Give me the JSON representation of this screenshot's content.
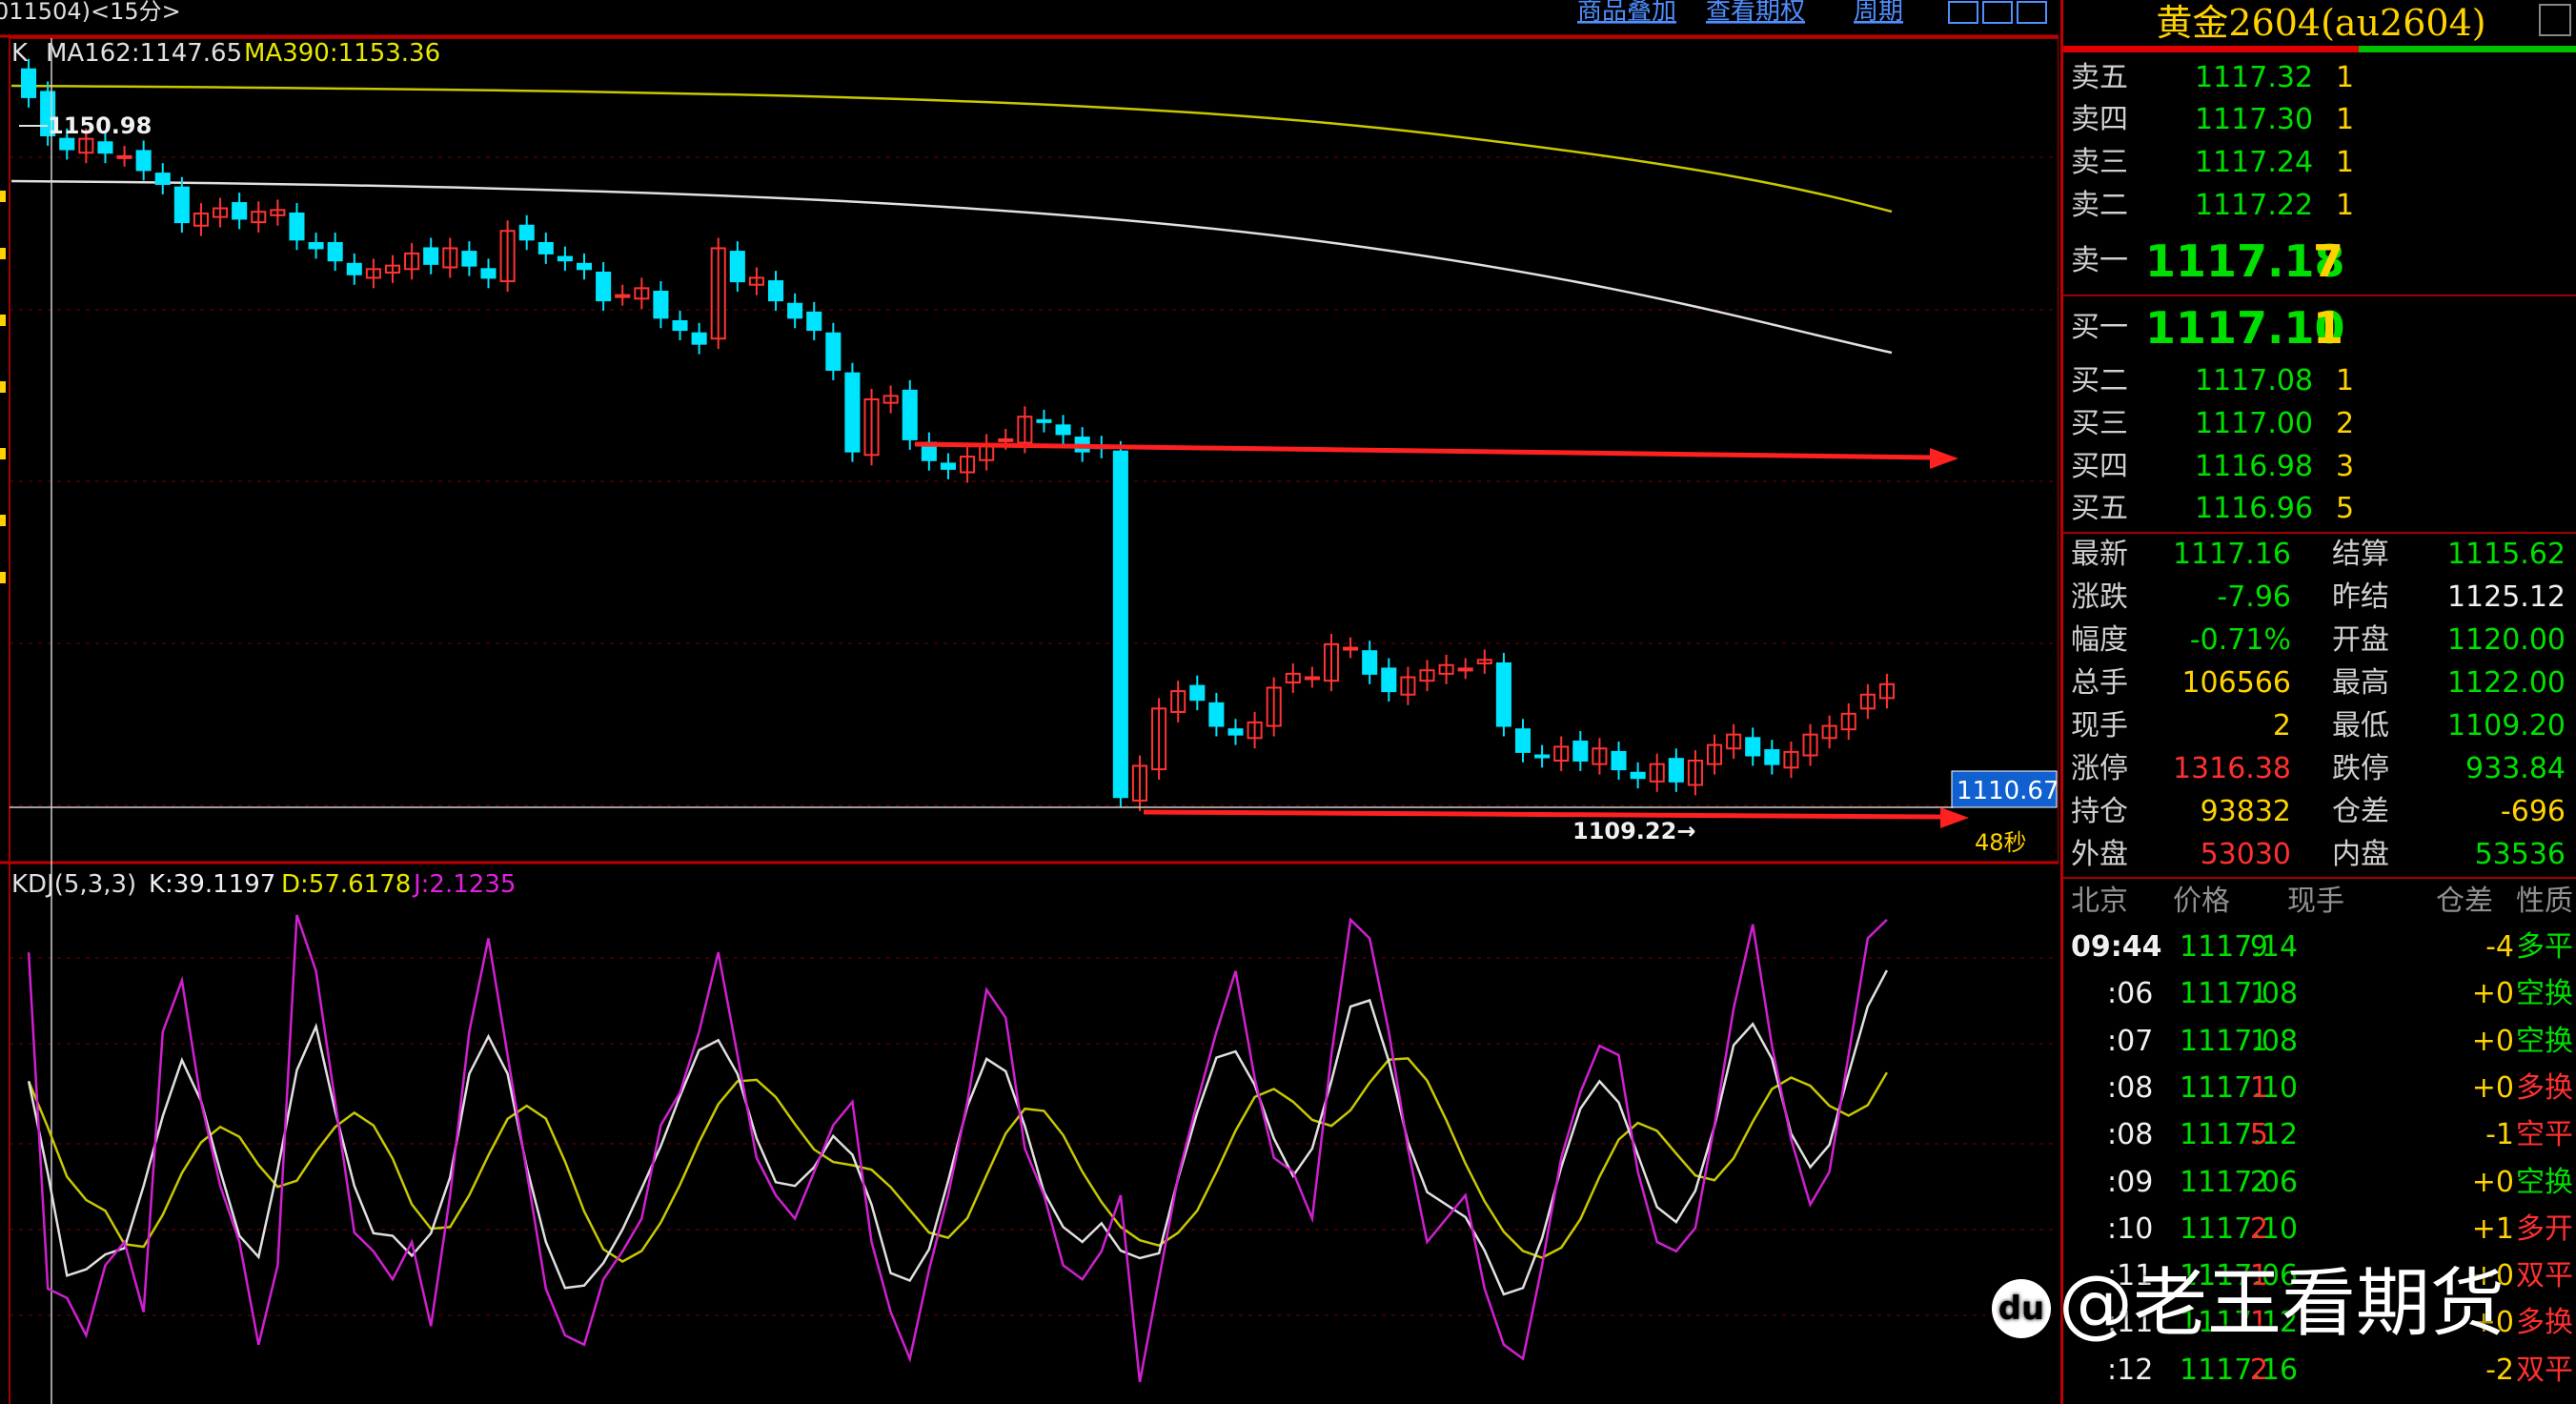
{
  "header": {
    "symbol_tag": "011504)<15分>",
    "links": [
      "商品叠加",
      "查看期权",
      "周期"
    ],
    "nav_icons": [
      "prev-icon",
      "next-icon",
      "window-icon"
    ]
  },
  "main_chart": {
    "indicator_label": "K",
    "ma162_label": "MA162:1147.65",
    "ma390_label": "MA390:1153.36",
    "high_marker": "1150.98",
    "low_marker": "1109.22→",
    "current_price_tag": "1110.67",
    "countdown": "48秒",
    "colors": {
      "up": "#ff3333",
      "down": "#00e5ff",
      "ma162": "#e0e0e0",
      "ma390": "#c8c800",
      "arrow": "#ff2020"
    }
  },
  "kdj": {
    "label": "KDJ(5,3,3)",
    "k": "K:39.1197",
    "d": "D:57.6178",
    "j": "J:2.1235",
    "colors": {
      "k": "#e0e0e0",
      "d": "#c8c800",
      "j": "#d020d0"
    }
  },
  "quote": {
    "title": "黄金2604(au2604)",
    "asks": [
      {
        "label": "卖五",
        "price": "1117.32",
        "vol": "1"
      },
      {
        "label": "卖四",
        "price": "1117.30",
        "vol": "1"
      },
      {
        "label": "卖三",
        "price": "1117.24",
        "vol": "1"
      },
      {
        "label": "卖二",
        "price": "1117.22",
        "vol": "1"
      }
    ],
    "ask1": {
      "label": "卖一",
      "price": "1117.18",
      "vol": "7"
    },
    "bid1": {
      "label": "买一",
      "price": "1117.10",
      "vol": "1"
    },
    "bids": [
      {
        "label": "买二",
        "price": "1117.08",
        "vol": "1"
      },
      {
        "label": "买三",
        "price": "1117.00",
        "vol": "2"
      },
      {
        "label": "买四",
        "price": "1116.98",
        "vol": "3"
      },
      {
        "label": "买五",
        "price": "1116.96",
        "vol": "5"
      }
    ],
    "stats": [
      {
        "l1": "最新",
        "v1": "1117.16",
        "c1": "green",
        "l2": "结算",
        "v2": "1115.62",
        "c2": "green"
      },
      {
        "l1": "涨跌",
        "v1": "-7.96",
        "c1": "green",
        "l2": "昨结",
        "v2": "1125.12",
        "c2": "white"
      },
      {
        "l1": "幅度",
        "v1": "-0.71%",
        "c1": "green",
        "l2": "开盘",
        "v2": "1120.00",
        "c2": "green"
      },
      {
        "l1": "总手",
        "v1": "106566",
        "c1": "yellow",
        "l2": "最高",
        "v2": "1122.00",
        "c2": "green"
      },
      {
        "l1": "现手",
        "v1": "2",
        "c1": "yellow",
        "l2": "最低",
        "v2": "1109.20",
        "c2": "green"
      },
      {
        "l1": "涨停",
        "v1": "1316.38",
        "c1": "red",
        "l2": "跌停",
        "v2": "933.84",
        "c2": "green"
      },
      {
        "l1": "持仓",
        "v1": "93832",
        "c1": "yellow",
        "l2": "仓差",
        "v2": "-696",
        "c2": "yellow"
      },
      {
        "l1": "外盘",
        "v1": "53030",
        "c1": "red",
        "l2": "内盘",
        "v2": "53536",
        "c2": "green"
      }
    ],
    "tick_headers": [
      "北京",
      "价格",
      "现手",
      "仓差",
      "性质"
    ],
    "ticks": [
      {
        "time": "09:44",
        "price": "1117.14",
        "vol": "9",
        "oi": "-4",
        "nature": "多平",
        "nc": "green"
      },
      {
        "time": ":06",
        "price": "1117.08",
        "vol": "1",
        "oi": "+0",
        "nature": "空换",
        "nc": "green"
      },
      {
        "time": ":07",
        "price": "1117.08",
        "vol": "1",
        "oi": "+0",
        "nature": "空换",
        "nc": "green"
      },
      {
        "time": ":08",
        "price": "1117.10",
        "vol": "1",
        "oi": "+0",
        "nature": "多换",
        "nc": "red"
      },
      {
        "time": ":08",
        "price": "1117.12",
        "vol": "5",
        "oi": "-1",
        "nature": "空平",
        "nc": "red"
      },
      {
        "time": ":09",
        "price": "1117.06",
        "vol": "2",
        "oi": "+0",
        "nature": "空换",
        "nc": "green"
      },
      {
        "time": ":10",
        "price": "1117.10",
        "vol": "2",
        "oi": "+1",
        "nature": "多开",
        "nc": "red"
      },
      {
        "time": ":11",
        "price": "1117.06",
        "vol": "1",
        "oi": "+0",
        "nature": "双平",
        "nc": "red"
      },
      {
        "time": ":11",
        "price": "1117.12",
        "vol": "1",
        "oi": "+0",
        "nature": "多换",
        "nc": "red"
      },
      {
        "time": ":12",
        "price": "1117.16",
        "vol": "2",
        "oi": "-2",
        "nature": "双平",
        "nc": "red"
      }
    ]
  },
  "watermark": {
    "icon_text": "du",
    "text": "@老王看期货"
  }
}
